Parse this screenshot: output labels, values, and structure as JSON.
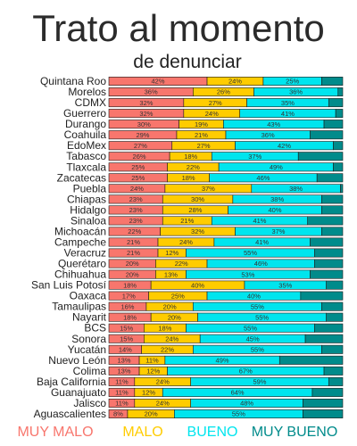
{
  "chart_data": {
    "type": "bar",
    "orientation": "horizontal",
    "stacked": true,
    "title": "Trato al momento",
    "subtitle": "de denunciar",
    "categories": [
      "Quintana Roo",
      "Morelos",
      "CDMX",
      "Guerrero",
      "Durango",
      "Coahuila",
      "EdoMex",
      "Tabasco",
      "Tlaxcala",
      "Zacatecas",
      "Puebla",
      "Chiapas",
      "Hidalgo",
      "Sinaloa",
      "Michoacán",
      "Campeche",
      "Veracruz",
      "Querétaro",
      "Chihuahua",
      "San Luis Potosí",
      "Oaxaca",
      "Tamaulipas",
      "Nayarit",
      "BCS",
      "Sonora",
      "Yucatán",
      "Nuevo León",
      "Colima",
      "Baja California",
      "Guanajuato",
      "Jalisco",
      "Aguascalientes"
    ],
    "series": [
      {
        "name": "MUY MALO",
        "color": "#f8766d",
        "values": [
          42,
          36,
          32,
          32,
          30,
          29,
          27,
          26,
          25,
          25,
          24,
          23,
          23,
          23,
          22,
          21,
          21,
          20,
          20,
          18,
          17,
          16,
          18,
          15,
          15,
          14,
          13,
          13,
          11,
          11,
          11,
          8
        ]
      },
      {
        "name": "MALO",
        "color": "#ffcc00",
        "values": [
          24,
          26,
          27,
          24,
          19,
          21,
          27,
          18,
          22,
          18,
          37,
          30,
          28,
          21,
          32,
          24,
          12,
          22,
          13,
          40,
          25,
          20,
          20,
          18,
          24,
          22,
          11,
          12,
          24,
          12,
          24,
          20
        ]
      },
      {
        "name": "BUENO",
        "color": "#00e5ee",
        "values": [
          25,
          36,
          35,
          41,
          43,
          36,
          42,
          37,
          49,
          46,
          38,
          38,
          40,
          41,
          37,
          41,
          55,
          46,
          53,
          35,
          40,
          55,
          55,
          55,
          45,
          55,
          49,
          67,
          59,
          64,
          48,
          55
        ]
      },
      {
        "name": "MUY BUENO",
        "color": "#008b8b",
        "values": [
          9,
          2,
          6,
          3,
          8,
          14,
          4,
          19,
          4,
          11,
          1,
          9,
          9,
          15,
          9,
          14,
          12,
          12,
          14,
          7,
          18,
          9,
          7,
          12,
          16,
          9,
          27,
          8,
          6,
          13,
          17,
          17
        ]
      }
    ],
    "value_suffix": "%",
    "xlim": [
      0,
      100
    ],
    "legend_position": "bottom"
  }
}
